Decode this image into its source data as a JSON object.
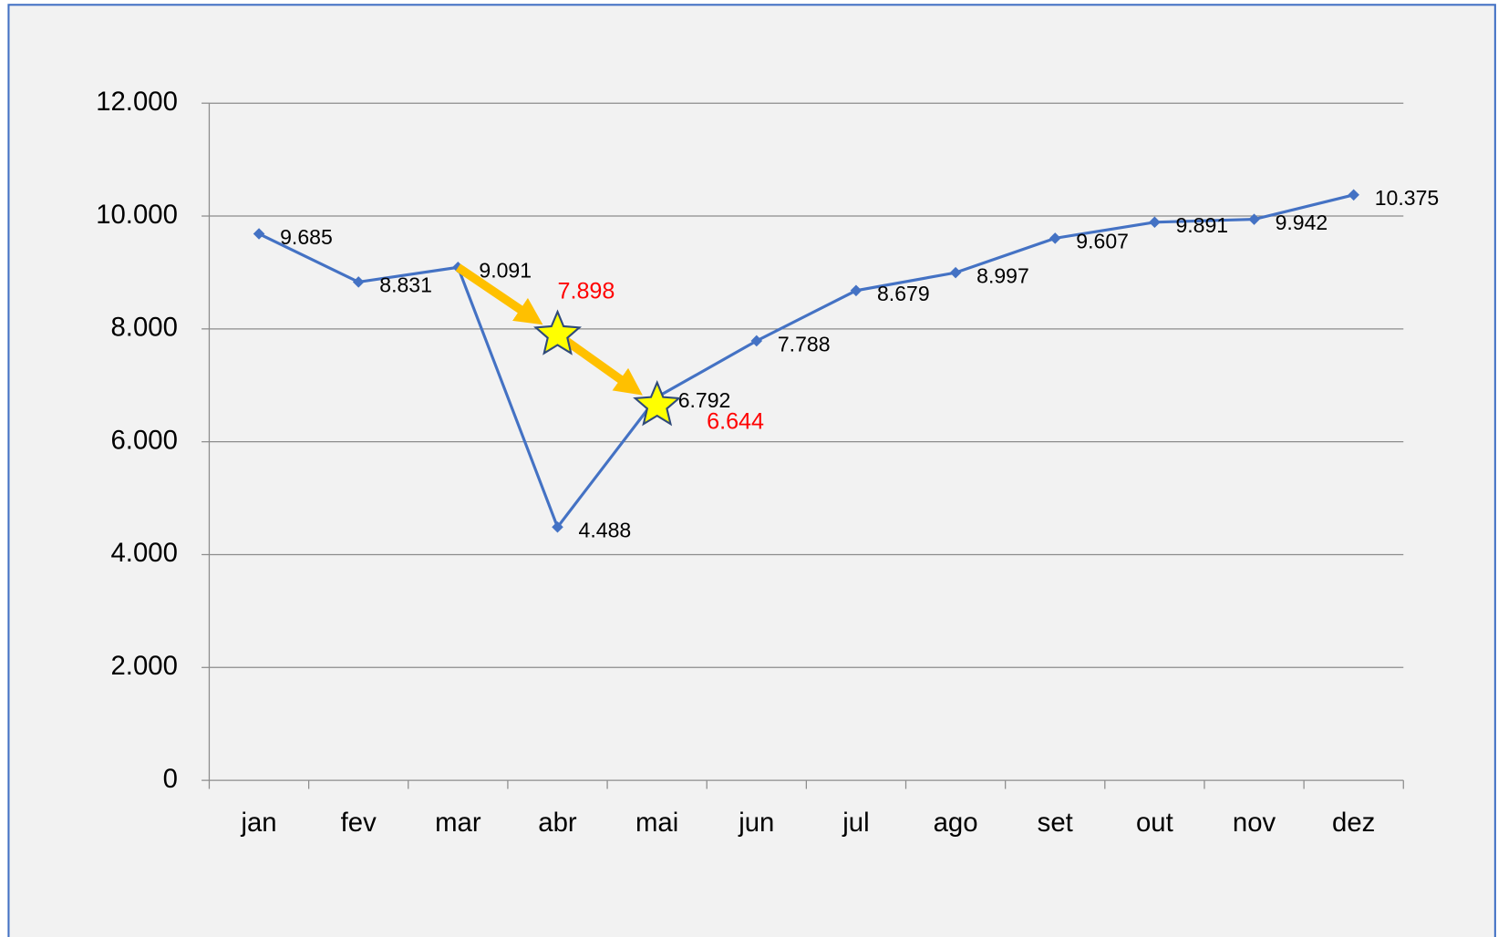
{
  "chart_data": {
    "type": "line",
    "categories": [
      "jan",
      "fev",
      "mar",
      "abr",
      "mai",
      "jun",
      "jul",
      "ago",
      "set",
      "out",
      "nov",
      "dez"
    ],
    "series": [
      {
        "color": "#4472c4",
        "values": [
          9685,
          8831,
          9091,
          4488,
          6792,
          7788,
          8679,
          8997,
          9607,
          9891,
          9942,
          10375
        ],
        "value_labels": [
          "9.685",
          "8.831",
          "9.091",
          "4.488",
          "6.792",
          "7.788",
          "8.679",
          "8.997",
          "9.607",
          "9.891",
          "9.942",
          "10.375"
        ]
      }
    ],
    "ylim": [
      0,
      12000
    ],
    "yticks": [
      {
        "value": 0,
        "label": "0"
      },
      {
        "value": 2000,
        "label": "2.000"
      },
      {
        "value": 4000,
        "label": "4.000"
      },
      {
        "value": 6000,
        "label": "6.000"
      },
      {
        "value": 8000,
        "label": "8.000"
      },
      {
        "value": 10000,
        "label": "10.000"
      },
      {
        "value": 12000,
        "label": "12.000"
      }
    ],
    "grid": true,
    "annotations": [
      {
        "x": "abr",
        "value": 7898,
        "label": "7.898",
        "color": "#ff0000"
      },
      {
        "x": "mai",
        "value": 6644,
        "label": "6.644",
        "color": "#ff0000"
      }
    ]
  }
}
